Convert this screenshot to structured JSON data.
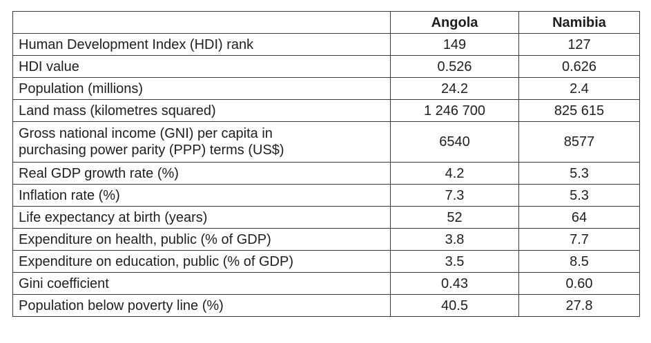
{
  "table": {
    "headers": [
      "",
      "Angola",
      "Namibia"
    ],
    "rows": [
      {
        "label": "Human Development Index (HDI) rank",
        "angola": "149",
        "namibia": "127"
      },
      {
        "label": "HDI value",
        "angola": "0.526",
        "namibia": "0.626"
      },
      {
        "label": "Population (millions)",
        "angola": "24.2",
        "namibia": "2.4"
      },
      {
        "label": "Land mass (kilometres squared)",
        "angola": "1 246 700",
        "namibia": "825 615"
      },
      {
        "label_line1": "Gross national income (GNI) per capita in",
        "label_line2": "purchasing power parity (PPP) terms (US$)",
        "angola": "6540",
        "namibia": "8577"
      },
      {
        "label": "Real GDP growth rate (%)",
        "angola": "4.2",
        "namibia": "5.3"
      },
      {
        "label": "Inflation rate (%)",
        "angola": "7.3",
        "namibia": "5.3"
      },
      {
        "label": "Life expectancy at birth (years)",
        "angola": "52",
        "namibia": "64"
      },
      {
        "label": "Expenditure on health, public (% of GDP)",
        "angola": "3.8",
        "namibia": "7.7"
      },
      {
        "label": "Expenditure on education, public (% of GDP)",
        "angola": "3.5",
        "namibia": "8.5"
      },
      {
        "label": "Gini coefficient",
        "angola": "0.43",
        "namibia": "0.60"
      },
      {
        "label": "Population below poverty line (%)",
        "angola": "40.5",
        "namibia": "27.8"
      }
    ]
  }
}
